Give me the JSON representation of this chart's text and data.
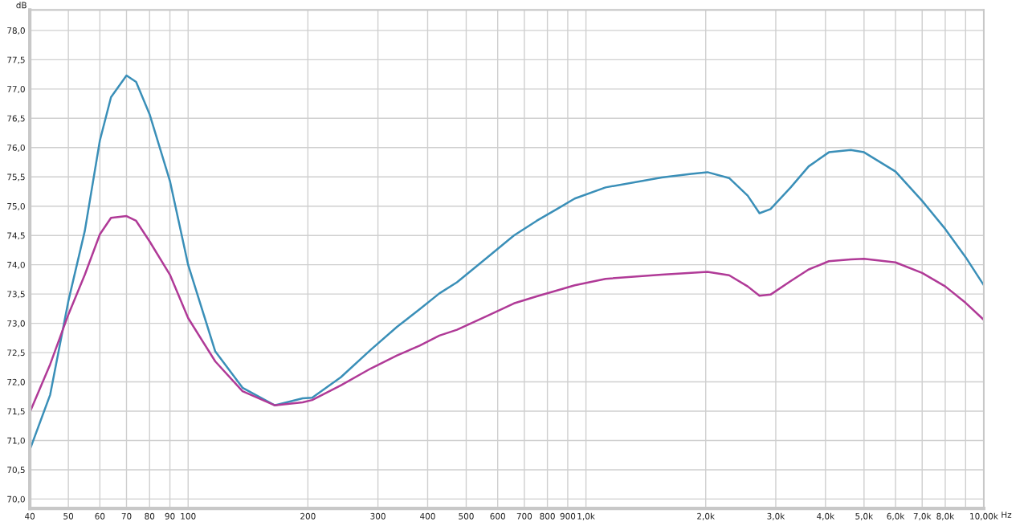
{
  "chart_data": {
    "type": "line",
    "xlabel": "Hz",
    "ylabel": "dB",
    "log": "x",
    "grid": true,
    "marker": "none",
    "line_style": "solid",
    "xlim": [
      40,
      10000
    ],
    "ylim": [
      69.84,
      78.35
    ],
    "xticks": [
      40,
      50,
      60,
      70,
      80,
      90,
      100,
      200,
      300,
      400,
      500,
      600,
      700,
      800,
      900,
      {
        "value": 1000,
        "label": "1,0k"
      },
      {
        "value": 2000,
        "label": "2,0k"
      },
      {
        "value": 3000,
        "label": "3,0k"
      },
      {
        "value": 4000,
        "label": "4,0k"
      },
      {
        "value": 5000,
        "label": "5,0k"
      },
      {
        "value": 6000,
        "label": "6,0k"
      },
      {
        "value": 7000,
        "label": "7,0k"
      },
      {
        "value": 8000,
        "label": "8,0k"
      },
      {
        "value": 9000,
        "label": null
      },
      {
        "value": 10000,
        "label": "10,00k"
      }
    ],
    "yticks": [
      {
        "value": 70.0,
        "label": "70,0"
      },
      {
        "value": 70.5,
        "label": "70,5"
      },
      {
        "value": 71.0,
        "label": "71,0"
      },
      {
        "value": 71.5,
        "label": "71,5"
      },
      {
        "value": 72.0,
        "label": "72,0"
      },
      {
        "value": 72.5,
        "label": "72,5"
      },
      {
        "value": 73.0,
        "label": "73,0"
      },
      {
        "value": 73.5,
        "label": "73,5"
      },
      {
        "value": 74.0,
        "label": "74,0"
      },
      {
        "value": 74.5,
        "label": "74,5"
      },
      {
        "value": 75.0,
        "label": "75,0"
      },
      {
        "value": 75.5,
        "label": "75,5"
      },
      {
        "value": 76.0,
        "label": "76,0"
      },
      {
        "value": 76.5,
        "label": "76,5"
      },
      {
        "value": 77.0,
        "label": "77,0"
      },
      {
        "value": 77.5,
        "label": "77,5"
      },
      {
        "value": 78.0,
        "label": "78,0"
      }
    ],
    "x": [
      40,
      45,
      50,
      55,
      60,
      64,
      70,
      74,
      80,
      90,
      100,
      117,
      137,
      165,
      194,
      205,
      242,
      288,
      335,
      382,
      428,
      474,
      566,
      659,
      752,
      845,
      937,
      1120,
      1550,
      1840,
      2020,
      2290,
      2550,
      2730,
      2910,
      3270,
      3630,
      4080,
      4630,
      5000,
      6000,
      7000,
      8000,
      9000,
      10000
    ],
    "series": [
      {
        "color": "#3a8fb8",
        "values": [
          70.84,
          71.78,
          73.38,
          74.58,
          76.12,
          76.86,
          77.23,
          77.12,
          76.57,
          75.43,
          74.0,
          72.52,
          71.9,
          71.6,
          71.72,
          71.73,
          72.08,
          72.55,
          72.94,
          73.24,
          73.51,
          73.7,
          74.13,
          74.5,
          74.75,
          74.95,
          75.13,
          75.32,
          75.49,
          75.55,
          75.58,
          75.48,
          75.18,
          74.88,
          74.95,
          75.32,
          75.68,
          75.92,
          75.96,
          75.92,
          75.59,
          75.09,
          74.61,
          74.13,
          73.65
        ]
      },
      {
        "color": "#b03a97",
        "values": [
          71.48,
          72.3,
          73.15,
          73.83,
          74.52,
          74.8,
          74.83,
          74.75,
          74.4,
          73.83,
          73.09,
          72.35,
          71.84,
          71.6,
          71.65,
          71.69,
          71.94,
          72.23,
          72.45,
          72.62,
          72.79,
          72.89,
          73.13,
          73.34,
          73.46,
          73.56,
          73.65,
          73.76,
          73.83,
          73.86,
          73.88,
          73.82,
          73.63,
          73.47,
          73.49,
          73.72,
          73.92,
          74.06,
          74.09,
          74.1,
          74.04,
          73.86,
          73.63,
          73.35,
          73.06
        ]
      }
    ]
  }
}
